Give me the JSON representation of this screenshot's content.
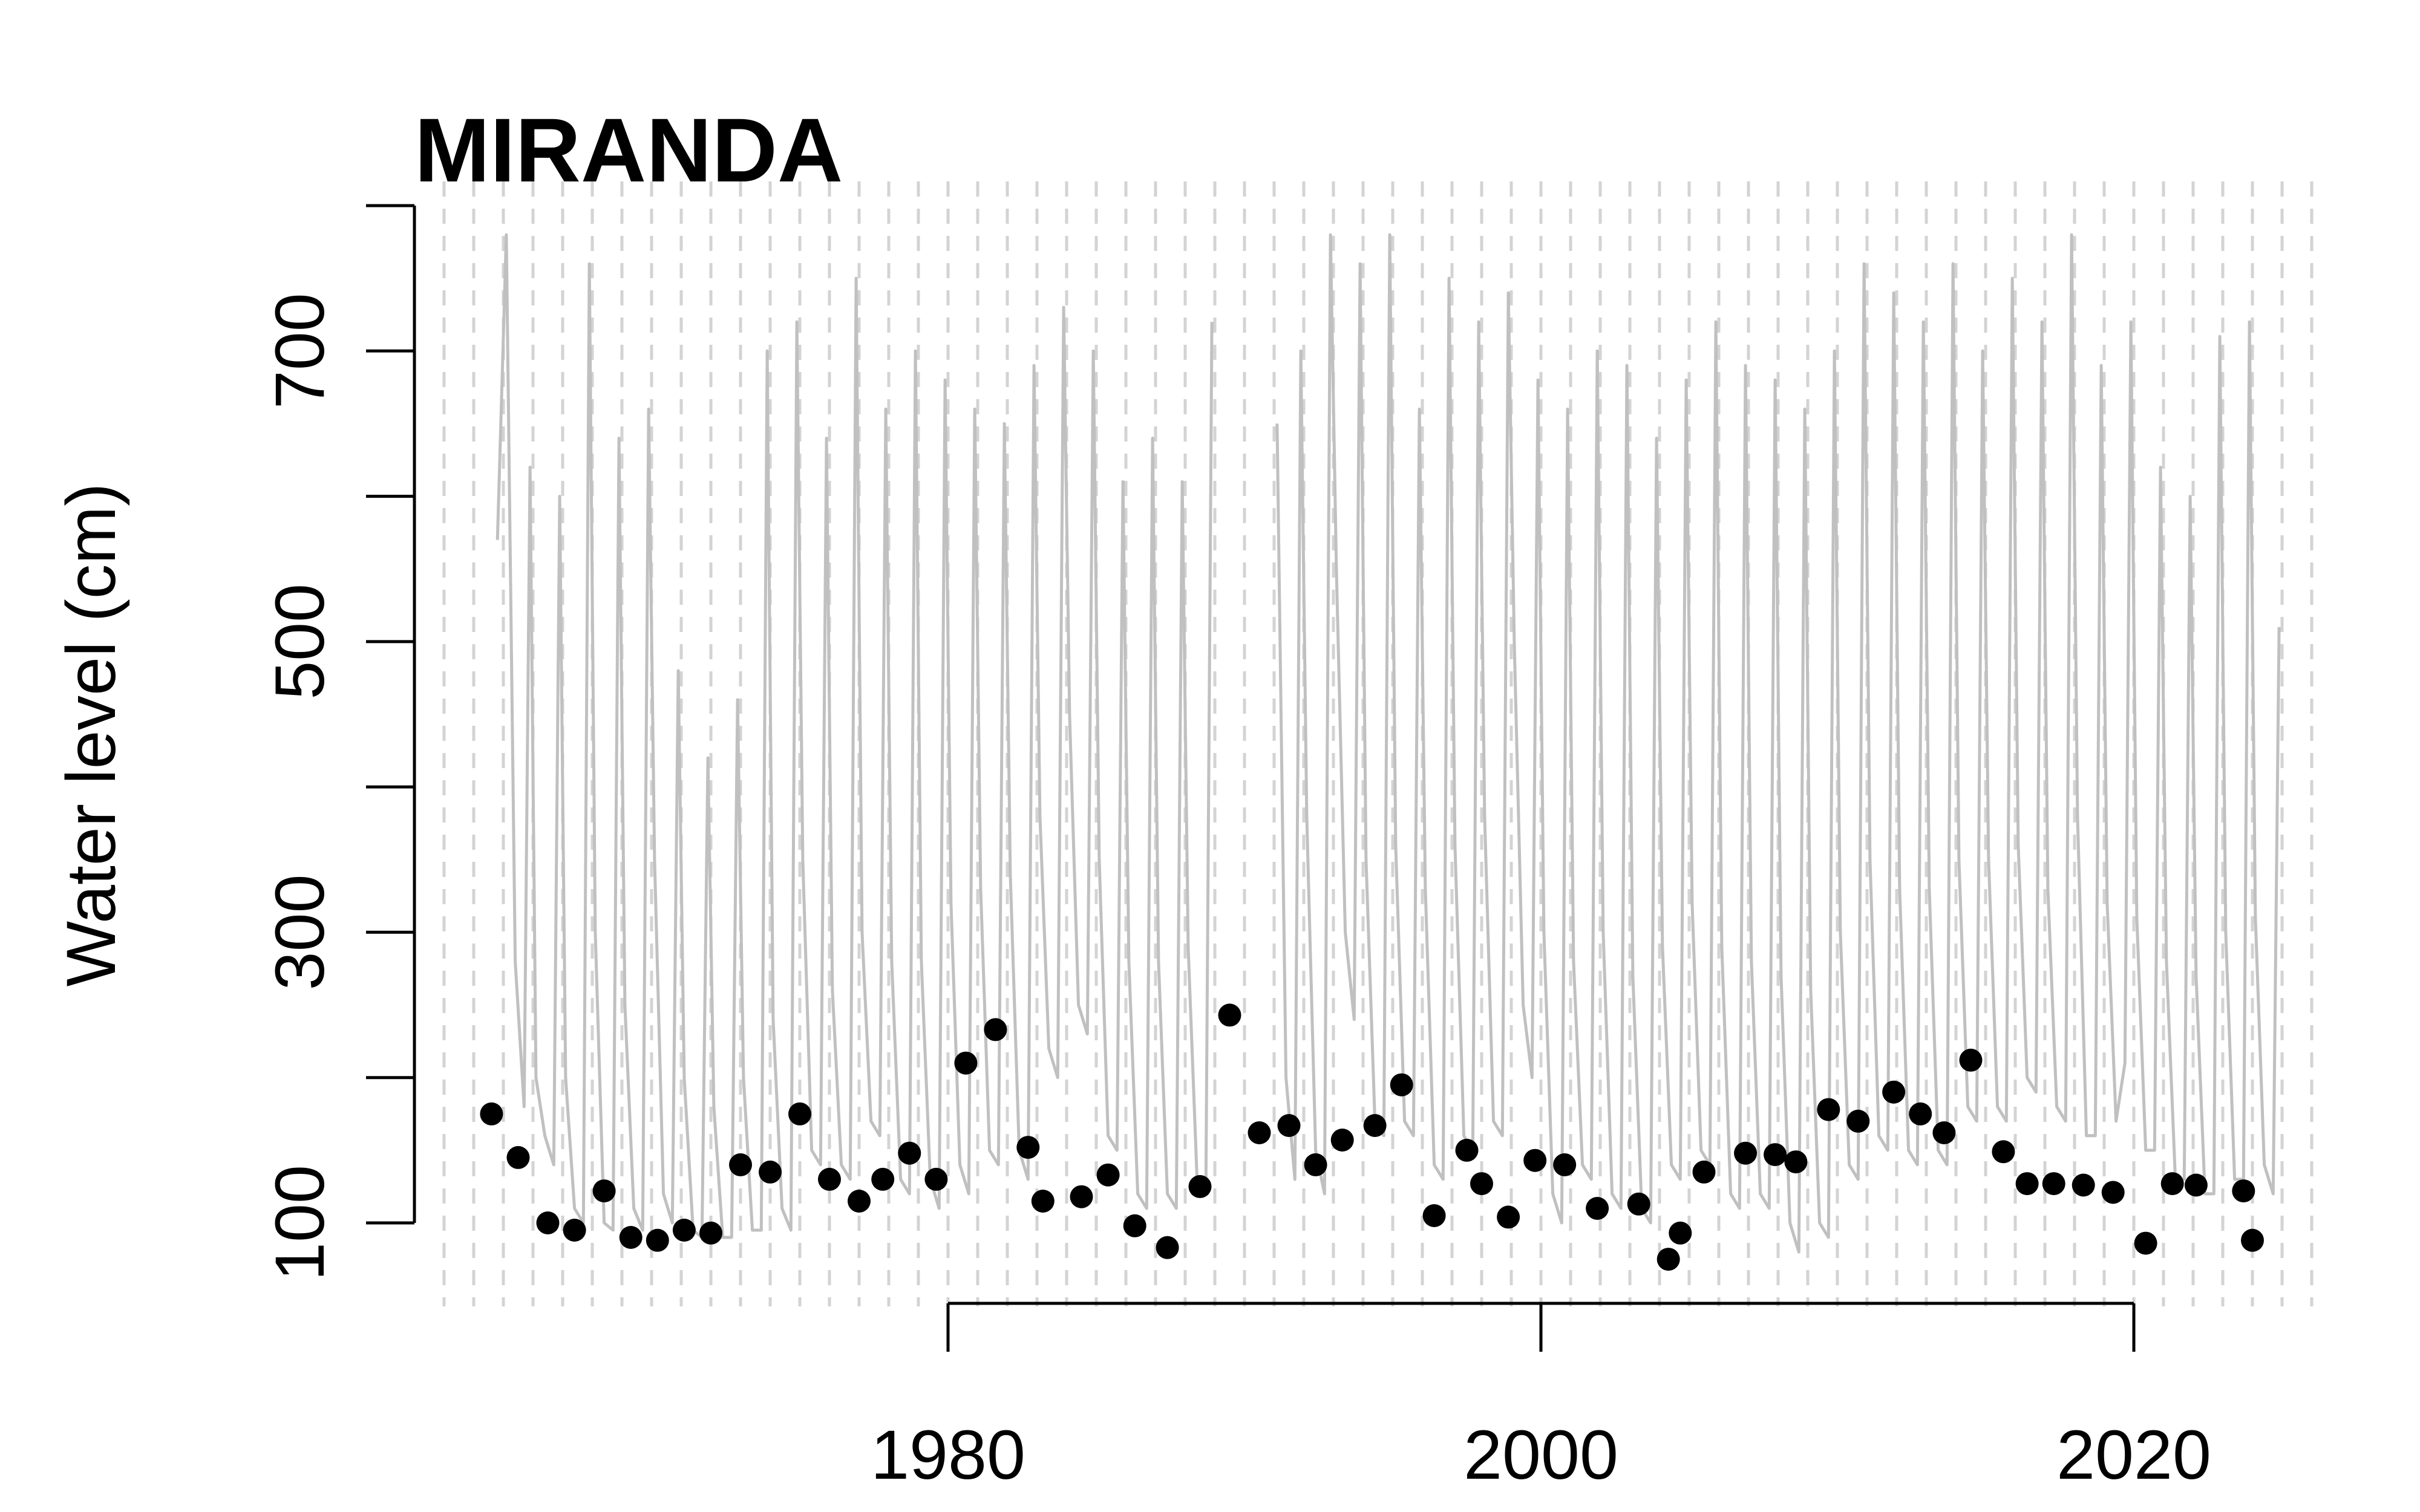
{
  "chart_data": {
    "type": "line",
    "title": "MIRANDA",
    "ylabel": "Water level (cm)",
    "xlabel": "",
    "xlim": [
      1962.0,
      2027.0
    ],
    "ylim": [
      70,
      790
    ],
    "yticks": [
      100,
      200,
      300,
      400,
      500,
      600,
      700,
      800
    ],
    "ytick_labels": [
      "100",
      "",
      "300",
      "",
      "500",
      "",
      "700",
      ""
    ],
    "xticks": [
      1980,
      2000,
      2020
    ],
    "xtick_labels": [
      "1980",
      "2000",
      "2020"
    ],
    "grid": "vertical dashed line at each year from 1963 to 2026",
    "series": [
      {
        "style": "line",
        "color": "#c0c0c0",
        "x": [
          1964.8,
          1965.1,
          1965.4,
          1965.7,
          1965.9,
          1966.1,
          1966.4,
          1966.7,
          1966.9,
          1967.1,
          1967.4,
          1967.7,
          1967.9,
          1968.1,
          1968.4,
          1968.7,
          1968.9,
          1969.1,
          1969.4,
          1969.7,
          1969.9,
          1970.1,
          1970.4,
          1970.7,
          1970.9,
          1971.1,
          1971.4,
          1971.7,
          1971.9,
          1972.1,
          1972.4,
          1972.7,
          1972.9,
          1973.1,
          1973.4,
          1973.7,
          1973.9,
          1974.1,
          1974.4,
          1974.7,
          1974.9,
          1975.1,
          1975.4,
          1975.7,
          1975.9,
          1976.1,
          1976.4,
          1976.7,
          1976.9,
          1977.1,
          1977.4,
          1977.7,
          1977.9,
          1978.1,
          1978.4,
          1978.7,
          1978.9,
          1979.1,
          1979.4,
          1979.7,
          1979.9,
          1980.1,
          1980.4,
          1980.7,
          1980.9,
          1981.1,
          1981.4,
          1981.7,
          1981.9,
          1982.1,
          1982.4,
          1982.7,
          1982.9,
          1983.1,
          1983.4,
          1983.7,
          1983.9,
          1984.1,
          1984.4,
          1984.7,
          1984.9,
          1985.1,
          1985.4,
          1985.7,
          1985.9,
          1986.1,
          1986.4,
          1986.7,
          1986.9,
          1987.1,
          1987.4,
          1987.7,
          1987.9,
          1988.1,
          1988.4,
          1988.7,
          1988.9,
          1991.1,
          1991.4,
          1991.7,
          1991.9,
          1992.1,
          1992.4,
          1992.7,
          1992.9,
          1993.1,
          1993.4,
          1993.7,
          1993.9,
          1994.1,
          1994.4,
          1994.7,
          1994.9,
          1995.1,
          1995.4,
          1995.7,
          1995.9,
          1996.1,
          1996.4,
          1996.7,
          1996.9,
          1997.1,
          1997.4,
          1997.7,
          1997.9,
          1998.1,
          1998.4,
          1998.7,
          1998.9,
          1999.1,
          1999.4,
          1999.7,
          1999.9,
          2000.1,
          2000.4,
          2000.7,
          2000.9,
          2001.1,
          2001.4,
          2001.7,
          2001.9,
          2002.1,
          2002.4,
          2002.7,
          2002.9,
          2003.1,
          2003.4,
          2003.7,
          2003.9,
          2004.1,
          2004.4,
          2004.7,
          2004.9,
          2005.1,
          2005.4,
          2005.7,
          2005.9,
          2006.1,
          2006.4,
          2006.7,
          2006.9,
          2007.1,
          2007.4,
          2007.7,
          2007.9,
          2008.1,
          2008.4,
          2008.7,
          2008.9,
          2009.1,
          2009.4,
          2009.7,
          2009.9,
          2010.1,
          2010.4,
          2010.7,
          2010.9,
          2011.1,
          2011.4,
          2011.7,
          2011.9,
          2012.1,
          2012.4,
          2012.7,
          2012.9,
          2013.1,
          2013.4,
          2013.7,
          2013.9,
          2014.1,
          2014.4,
          2014.7,
          2014.9,
          2015.1,
          2015.4,
          2015.7,
          2015.9,
          2016.1,
          2016.4,
          2016.7,
          2016.9,
          2017.1,
          2017.4,
          2017.7,
          2017.9,
          2018.1,
          2018.4,
          2018.7,
          2018.9,
          2019.1,
          2019.4,
          2019.7,
          2019.9,
          2020.1,
          2020.4,
          2020.7,
          2020.9,
          2021.1,
          2021.4,
          2021.7,
          2021.9,
          2022.1,
          2022.4,
          2022.7,
          2022.9,
          2023.1,
          2023.4,
          2023.7,
          2023.9,
          2024.1,
          2024.4,
          2024.7,
          2024.9
        ],
        "y": [
          570,
          780,
          280,
          180,
          620,
          200,
          160,
          140,
          600,
          200,
          110,
          100,
          760,
          300,
          100,
          95,
          640,
          250,
          110,
          95,
          660,
          350,
          120,
          100,
          480,
          200,
          95,
          90,
          420,
          180,
          90,
          90,
          460,
          200,
          95,
          95,
          700,
          240,
          110,
          95,
          720,
          350,
          150,
          140,
          640,
          260,
          140,
          130,
          750,
          300,
          170,
          160,
          660,
          280,
          130,
          120,
          700,
          280,
          130,
          110,
          680,
          320,
          140,
          120,
          660,
          330,
          150,
          140,
          650,
          340,
          150,
          130,
          690,
          380,
          220,
          200,
          730,
          450,
          250,
          230,
          700,
          350,
          160,
          150,
          610,
          280,
          120,
          110,
          640,
          280,
          120,
          110,
          610,
          290,
          130,
          130,
          720,
          650,
          200,
          130,
          700,
          380,
          150,
          120,
          780,
          550,
          300,
          240,
          760,
          350,
          170,
          160,
          780,
          360,
          170,
          160,
          660,
          330,
          140,
          130,
          750,
          360,
          160,
          150,
          720,
          380,
          170,
          160,
          740,
          500,
          250,
          200,
          680,
          300,
          120,
          100,
          660,
          280,
          140,
          130,
          700,
          300,
          120,
          110,
          690,
          270,
          110,
          100,
          640,
          290,
          140,
          130,
          680,
          320,
          150,
          140,
          720,
          290,
          120,
          110,
          690,
          280,
          120,
          110,
          680,
          270,
          100,
          80,
          660,
          260,
          100,
          90,
          700,
          300,
          140,
          130,
          760,
          350,
          160,
          150,
          740,
          330,
          150,
          140,
          720,
          330,
          150,
          140,
          760,
          350,
          180,
          170,
          700,
          350,
          180,
          170,
          750,
          360,
          200,
          190,
          720,
          330,
          180,
          170,
          780,
          380,
          160,
          160,
          690,
          320,
          170,
          210,
          720,
          310,
          150,
          150,
          620,
          280,
          130,
          130,
          600,
          270,
          120,
          120,
          710,
          300,
          130,
          130,
          720,
          310,
          140,
          120,
          510
        ]
      },
      {
        "style": "scatter",
        "color": "#000000",
        "x": [
          1964.6,
          1965.5,
          1966.5,
          1967.4,
          1968.4,
          1969.3,
          1970.2,
          1971.1,
          1972.0,
          1973.0,
          1974.0,
          1975.0,
          1976.0,
          1977.0,
          1977.8,
          1978.7,
          1979.6,
          1980.6,
          1981.6,
          1982.7,
          1983.2,
          1984.5,
          1985.4,
          1986.3,
          1987.4,
          1988.5,
          1989.5,
          1990.5,
          1991.5,
          1992.4,
          1993.3,
          1994.4,
          1995.3,
          1996.4,
          1997.5,
          1998.0,
          1998.9,
          1999.8,
          2000.8,
          2001.9,
          2003.3,
          2004.3,
          2004.7,
          2005.5,
          2006.9,
          2007.9,
          2008.6,
          2009.7,
          2010.7,
          2011.9,
          2012.8,
          2013.6,
          2014.5,
          2015.6,
          2016.4,
          2017.3,
          2018.3,
          2019.3,
          2020.4,
          2021.3,
          2022.1,
          2023.7,
          2024.0
        ],
        "y": [
          175,
          145,
          100,
          95,
          122,
          90,
          88,
          95,
          93,
          140,
          135,
          175,
          130,
          115,
          130,
          148,
          130,
          210,
          233,
          152,
          115,
          118,
          133,
          98,
          83,
          125,
          243,
          162,
          167,
          140,
          157,
          167,
          195,
          105,
          150,
          127,
          104,
          143,
          140,
          110,
          113,
          75,
          93,
          135,
          148,
          147,
          142,
          178,
          170,
          190,
          175,
          162,
          212,
          149,
          127,
          127,
          126,
          121,
          86,
          127,
          126,
          122,
          88
        ]
      }
    ]
  }
}
